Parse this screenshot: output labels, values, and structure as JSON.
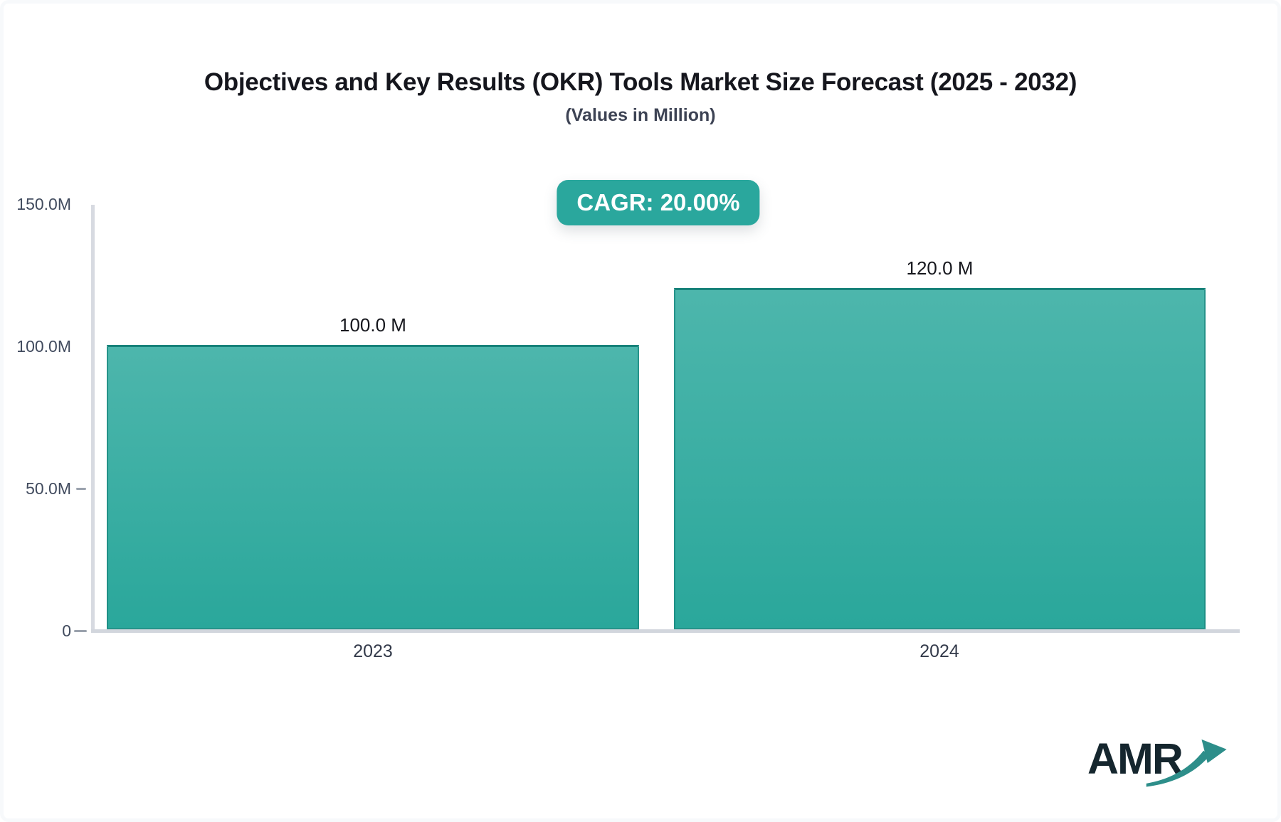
{
  "header": {
    "title": "Objectives and Key Results (OKR) Tools Market Size Forecast (2025 - 2032)",
    "subtitle": "(Values in Million)"
  },
  "badge": {
    "label": "CAGR: 20.00%",
    "bg_color": "#2aa79d",
    "text_color": "#ffffff"
  },
  "chart_data": {
    "type": "bar",
    "title": "Objectives and Key Results (OKR) Tools Market Size Forecast (2025 - 2032)",
    "subtitle": "(Values in Million)",
    "categories": [
      "2023",
      "2024"
    ],
    "values": [
      100,
      120
    ],
    "data_labels": [
      "100.0 M",
      "120.0 M"
    ],
    "y_ticks": [
      "150.0M",
      "100.0M",
      "50.0M",
      "0"
    ],
    "ylim": [
      0,
      150
    ],
    "xlabel": "",
    "ylabel": "",
    "grid": "off",
    "legend": "none",
    "bar_color_top": "#4db6ac",
    "bar_color_bottom": "#2aa79b",
    "bar_border_color": "#17827a",
    "axis_line_color": "#d4d8df"
  },
  "logo": {
    "text": "AMR",
    "text_color": "#15262e",
    "arrow_color": "#2d8e8a"
  }
}
